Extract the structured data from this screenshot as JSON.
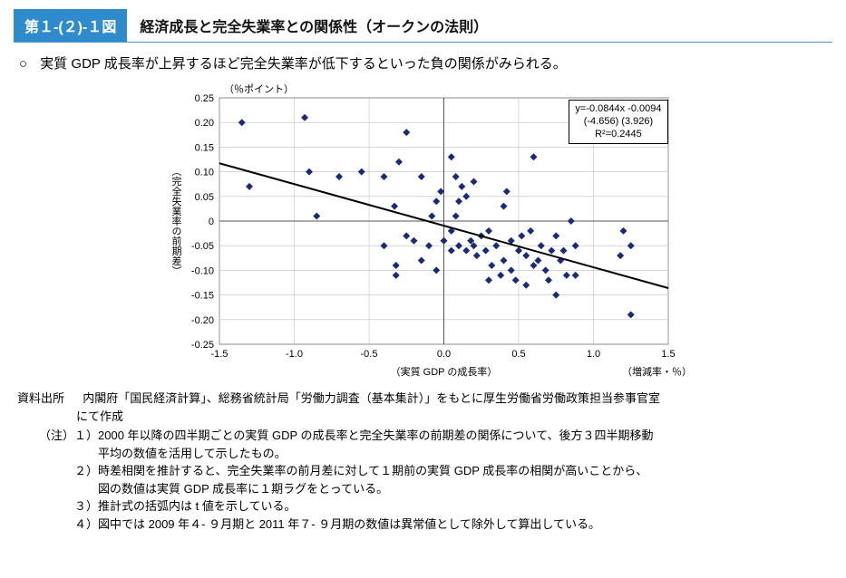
{
  "header": {
    "figNumber": "第１-(２)-１図",
    "title": "経済成長と完全失業率との関係性（オークンの法則）"
  },
  "bullet": "実質 GDP 成長率が上昇するほど完全失業率が低下するといった負の関係がみられる。",
  "chart": {
    "type": "scatter",
    "yAxisTopLabel": "（％ポイント）",
    "yAxisSideLabel": "（完全失業率の前期差）",
    "xAxisLabel": "（実質 GDP の成長率）",
    "xAxisRightLabel": "（増減率・％）",
    "xlim": [
      -1.5,
      1.5
    ],
    "ylim": [
      -0.25,
      0.25
    ],
    "xtick_step": 0.5,
    "ytick_step": 0.05,
    "marker_color": "#1a2a7a",
    "marker_size": 8,
    "line_color": "#000000",
    "line_width": 2,
    "grid_color": "#bfbfbf",
    "axis_color": "#555555",
    "background_color": "#ffffff",
    "regression": {
      "slope": -0.0844,
      "intercept": -0.0094
    },
    "stats": {
      "line1": "y=-0.0844x -0.0094",
      "line2": "(-4.656)   (3.926)",
      "line3": "R²=0.2445"
    },
    "points": [
      [
        -1.35,
        0.2
      ],
      [
        -0.93,
        0.21
      ],
      [
        -1.3,
        0.07
      ],
      [
        -0.9,
        0.1
      ],
      [
        -0.7,
        0.09
      ],
      [
        -0.55,
        0.1
      ],
      [
        -0.4,
        0.09
      ],
      [
        -0.33,
        0.03
      ],
      [
        -0.3,
        0.12
      ],
      [
        -0.15,
        0.09
      ],
      [
        -0.08,
        0.01
      ],
      [
        -0.05,
        0.04
      ],
      [
        -0.1,
        -0.05
      ],
      [
        -0.2,
        -0.04
      ],
      [
        -0.4,
        -0.05
      ],
      [
        -0.32,
        -0.09
      ],
      [
        -0.32,
        -0.11
      ],
      [
        -0.25,
        0.18
      ],
      [
        -0.85,
        0.01
      ],
      [
        -0.25,
        -0.03
      ],
      [
        -0.05,
        -0.1
      ],
      [
        -0.15,
        -0.08
      ],
      [
        0.05,
        0.13
      ],
      [
        0.08,
        0.09
      ],
      [
        0.12,
        0.07
      ],
      [
        0.1,
        0.04
      ],
      [
        0.08,
        0.01
      ],
      [
        0.05,
        -0.02
      ],
      [
        0.1,
        -0.05
      ],
      [
        0.15,
        -0.06
      ],
      [
        0.2,
        -0.05
      ],
      [
        0.22,
        -0.07
      ],
      [
        0.18,
        -0.04
      ],
      [
        0.25,
        -0.03
      ],
      [
        0.28,
        -0.06
      ],
      [
        0.3,
        -0.02
      ],
      [
        0.32,
        -0.09
      ],
      [
        0.3,
        -0.12
      ],
      [
        0.38,
        -0.11
      ],
      [
        0.35,
        -0.05
      ],
      [
        0.4,
        0.03
      ],
      [
        0.42,
        0.06
      ],
      [
        0.45,
        -0.04
      ],
      [
        0.4,
        -0.08
      ],
      [
        0.45,
        -0.1
      ],
      [
        0.48,
        -0.12
      ],
      [
        0.5,
        -0.06
      ],
      [
        0.55,
        -0.07
      ],
      [
        0.52,
        -0.03
      ],
      [
        0.6,
        -0.09
      ],
      [
        0.55,
        -0.13
      ],
      [
        0.6,
        0.13
      ],
      [
        0.58,
        -0.02
      ],
      [
        0.65,
        -0.05
      ],
      [
        0.63,
        -0.08
      ],
      [
        0.68,
        -0.1
      ],
      [
        0.7,
        -0.12
      ],
      [
        0.72,
        -0.06
      ],
      [
        0.75,
        -0.03
      ],
      [
        0.78,
        -0.08
      ],
      [
        0.8,
        -0.06
      ],
      [
        0.82,
        -0.11
      ],
      [
        0.88,
        -0.11
      ],
      [
        0.88,
        -0.05
      ],
      [
        0.75,
        -0.15
      ],
      [
        0.85,
        0.0
      ],
      [
        1.2,
        -0.02
      ],
      [
        1.25,
        -0.05
      ],
      [
        1.18,
        -0.07
      ],
      [
        1.25,
        -0.19
      ],
      [
        0.15,
        0.05
      ],
      [
        0.2,
        0.08
      ],
      [
        0.05,
        -0.06
      ],
      [
        0.0,
        -0.04
      ],
      [
        -0.02,
        0.06
      ]
    ]
  },
  "source": {
    "label": "資料出所",
    "text1": "内閣府「国民経済計算」、総務省統計局「労働力調査（基本集計）」をもとに厚生労働省労働政策担当参事官室",
    "text2": "にて作成"
  },
  "notes": {
    "label": "（注）",
    "items": [
      {
        "num": "１）",
        "lines": [
          "2000 年以降の四半期ごとの実質 GDP の成長率と完全失業率の前期差の関係について、後方３四半期移動",
          "平均の数値を活用して示したもの。"
        ]
      },
      {
        "num": "２）",
        "lines": [
          "時差相関を推計すると、完全失業率の前月差に対して１期前の実質 GDP 成長率の相関が高いことから、",
          "図の数値は実質 GDP 成長率に１期ラグをとっている。"
        ]
      },
      {
        "num": "３）",
        "lines": [
          "推計式の括弧内は t 値を示している。"
        ]
      },
      {
        "num": "４）",
        "lines": [
          "図中では 2009 年４- ９月期と 2011 年７- ９月期の数値は異常値として除外して算出している。"
        ]
      }
    ]
  }
}
